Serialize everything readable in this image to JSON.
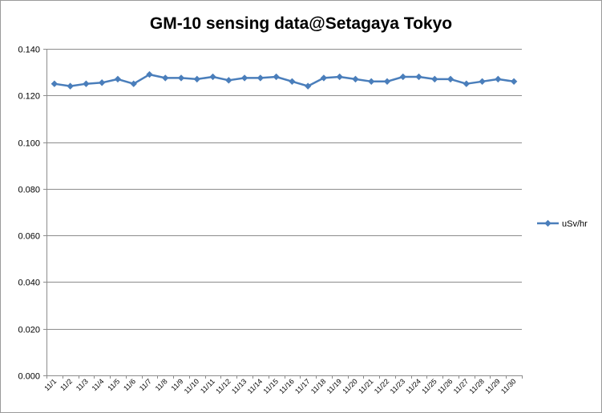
{
  "chart_data": {
    "type": "line",
    "title": "GM-10 sensing data@Setagaya Tokyo",
    "xlabel": "",
    "ylabel": "",
    "ylim": [
      0,
      0.14
    ],
    "yticks": [
      "0.000",
      "0.020",
      "0.040",
      "0.060",
      "0.080",
      "0.100",
      "0.120",
      "0.140"
    ],
    "grid": true,
    "legend_position": "right",
    "categories": [
      "11/1",
      "11/2",
      "11/3",
      "11/4",
      "11/5",
      "11/6",
      "11/7",
      "11/8",
      "11/9",
      "11/10",
      "11/11",
      "11/12",
      "11/13",
      "11/14",
      "11/15",
      "11/16",
      "11/17",
      "11/18",
      "11/19",
      "11/20",
      "11/21",
      "11/22",
      "11/23",
      "11/24",
      "11/25",
      "11/26",
      "11/27",
      "11/28",
      "11/29",
      "11/30"
    ],
    "series": [
      {
        "name": "uSv/hr",
        "color": "#4a7ebb",
        "values": [
          0.125,
          0.124,
          0.125,
          0.1255,
          0.127,
          0.125,
          0.129,
          0.1275,
          0.1275,
          0.127,
          0.128,
          0.1265,
          0.1275,
          0.1275,
          0.128,
          0.126,
          0.124,
          0.1275,
          0.128,
          0.127,
          0.126,
          0.126,
          0.128,
          0.128,
          0.127,
          0.127,
          0.125,
          0.126,
          0.127,
          0.126
        ]
      }
    ]
  }
}
